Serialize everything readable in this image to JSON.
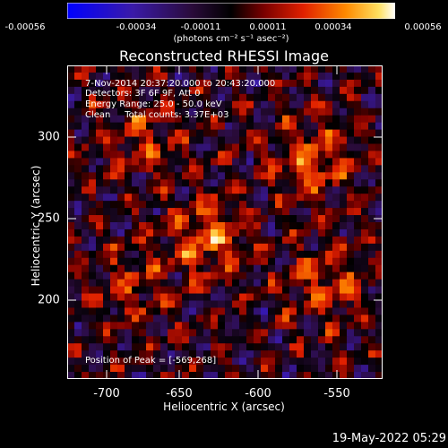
{
  "colorbar": {
    "ticks": [
      "-0.00056",
      "-0.00034",
      "-0.00011",
      "0.00011",
      "0.00034",
      "0.00056"
    ],
    "units": "(photons cm⁻² s⁻¹ asec⁻²)"
  },
  "title": "Reconstructed RHESSI Image",
  "info": {
    "time": "7-Nov-2014 20:37:20.000 to 20:43:20.000",
    "detectors": "Detectors: 3F 6F 9F, Att 0",
    "energy": "Energy Range: 25.0 - 50.0 keV",
    "clean": "Clean     Total counts: 3.37E+03",
    "peak": "Position of Peak = [-569,268]"
  },
  "axes": {
    "xlabel": "Heliocentric X (arcsec)",
    "ylabel": "Heliocentric Y (arcsec)",
    "xticks": [
      "-700",
      "-650",
      "-600",
      "-550"
    ],
    "yticks": [
      "300",
      "250",
      "200"
    ]
  },
  "footer": {
    "date": "19-May-2022 05:29"
  }
}
